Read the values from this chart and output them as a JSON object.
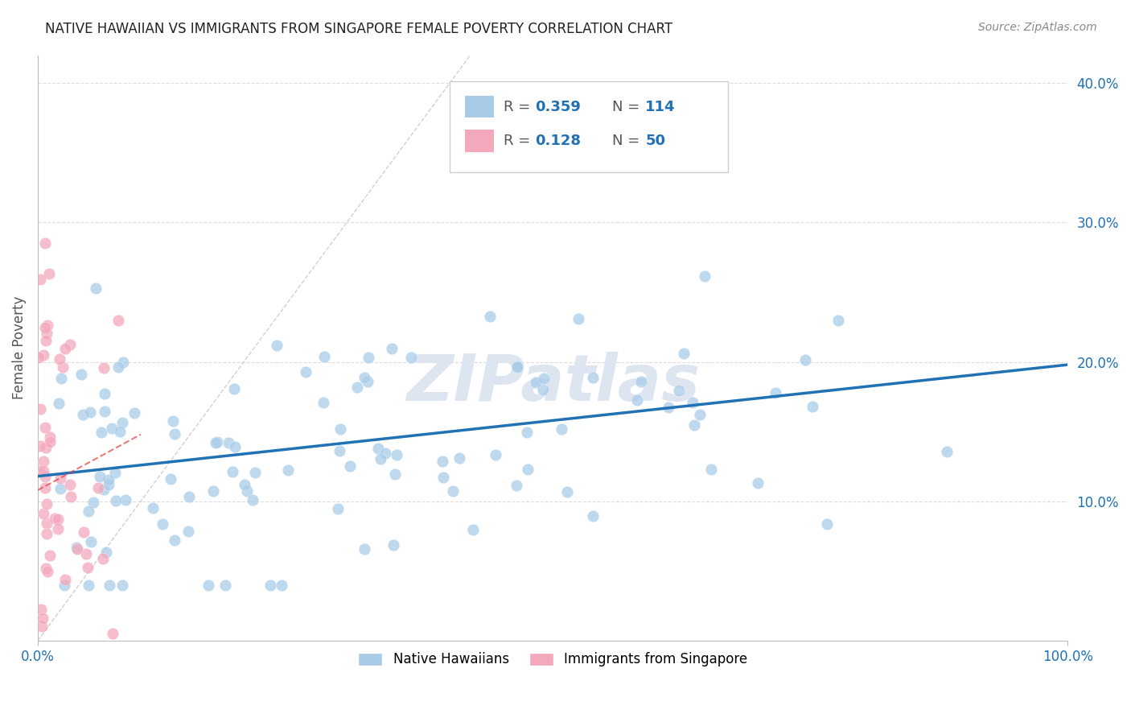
{
  "title": "NATIVE HAWAIIAN VS IMMIGRANTS FROM SINGAPORE FEMALE POVERTY CORRELATION CHART",
  "source": "Source: ZipAtlas.com",
  "ylabel": "Female Poverty",
  "xlim": [
    0,
    1.0
  ],
  "ylim": [
    0,
    0.42
  ],
  "y_ticks": [
    0.1,
    0.2,
    0.3,
    0.4
  ],
  "y_tick_labels": [
    "10.0%",
    "20.0%",
    "30.0%",
    "40.0%"
  ],
  "legend1_label": "Native Hawaiians",
  "legend2_label": "Immigrants from Singapore",
  "R1": 0.359,
  "N1": 114,
  "R2": 0.128,
  "N2": 50,
  "blue_color": "#a8cce8",
  "pink_color": "#f4a8bc",
  "blue_line_color": "#2171b5",
  "pink_line_color": "#d44",
  "diag_line_color": "#cccccc",
  "grid_color": "#dddddd",
  "title_color": "#222222",
  "source_color": "#888888",
  "watermark_color": "#dde6f0",
  "blue_line_y0": 0.118,
  "blue_line_y1": 0.198,
  "pink_line_x0": 0.0,
  "pink_line_x1": 0.1,
  "pink_line_y0": 0.108,
  "pink_line_y1": 0.148
}
